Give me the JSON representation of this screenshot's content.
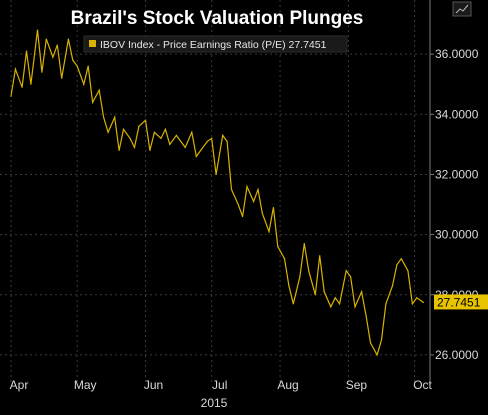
{
  "chart_data": {
    "type": "line",
    "title": "Brazil's Stock Valuation Plunges",
    "legend": "IBOV Index - Price Earnings Ratio (P/E) 27.7451",
    "series": [
      {
        "name": "IBOV Index - Price Earnings Ratio (P/E)",
        "color": "#d9b300",
        "last_value": "27.7451",
        "x": [
          "2015-04-01",
          "2015-04-03",
          "2015-04-06",
          "2015-04-08",
          "2015-04-10",
          "2015-04-13",
          "2015-04-15",
          "2015-04-17",
          "2015-04-20",
          "2015-04-22",
          "2015-04-24",
          "2015-04-27",
          "2015-04-29",
          "2015-05-01",
          "2015-05-04",
          "2015-05-06",
          "2015-05-08",
          "2015-05-11",
          "2015-05-13",
          "2015-05-15",
          "2015-05-18",
          "2015-05-20",
          "2015-05-22",
          "2015-05-25",
          "2015-05-27",
          "2015-05-29",
          "2015-06-01",
          "2015-06-03",
          "2015-06-05",
          "2015-06-08",
          "2015-06-10",
          "2015-06-12",
          "2015-06-15",
          "2015-06-17",
          "2015-06-19",
          "2015-06-22",
          "2015-06-24",
          "2015-06-26",
          "2015-06-29",
          "2015-07-01",
          "2015-07-03",
          "2015-07-06",
          "2015-07-08",
          "2015-07-10",
          "2015-07-13",
          "2015-07-15",
          "2015-07-17",
          "2015-07-20",
          "2015-07-22",
          "2015-07-24",
          "2015-07-27",
          "2015-07-29",
          "2015-07-31",
          "2015-08-03",
          "2015-08-05",
          "2015-08-07",
          "2015-08-10",
          "2015-08-12",
          "2015-08-14",
          "2015-08-17",
          "2015-08-19",
          "2015-08-21",
          "2015-08-24",
          "2015-08-26",
          "2015-08-28",
          "2015-08-31",
          "2015-09-02",
          "2015-09-04",
          "2015-09-07",
          "2015-09-09",
          "2015-09-11",
          "2015-09-14",
          "2015-09-16",
          "2015-09-18",
          "2015-09-21",
          "2015-09-23",
          "2015-09-25",
          "2015-09-28",
          "2015-09-30",
          "2015-10-02",
          "2015-10-05"
        ],
        "values": [
          34.6,
          35.5,
          34.9,
          36.1,
          35.0,
          36.8,
          35.4,
          36.5,
          35.9,
          36.3,
          35.2,
          36.5,
          35.8,
          35.6,
          35.0,
          35.6,
          34.4,
          34.8,
          33.9,
          33.4,
          33.9,
          32.8,
          33.5,
          33.2,
          32.9,
          33.6,
          33.8,
          32.8,
          33.4,
          33.2,
          33.5,
          33.0,
          33.3,
          33.1,
          32.9,
          33.4,
          32.6,
          32.8,
          33.1,
          33.2,
          32.0,
          33.3,
          33.1,
          31.5,
          31.0,
          30.6,
          31.6,
          31.1,
          31.5,
          30.7,
          30.1,
          30.9,
          29.6,
          29.2,
          28.3,
          27.7,
          28.6,
          29.7,
          28.8,
          28.0,
          29.3,
          28.1,
          27.6,
          27.9,
          27.7,
          28.8,
          28.6,
          27.6,
          28.1,
          27.3,
          26.4,
          26.0,
          26.5,
          27.7,
          28.3,
          29.0,
          29.2,
          28.8,
          27.7,
          27.9,
          27.7451
        ]
      }
    ],
    "ylim": [
      25.0,
      37.8
    ],
    "yticks": [
      26,
      28,
      30,
      32,
      34,
      36
    ],
    "ytick_labels": [
      "26.0000",
      "28.0000",
      "30.0000",
      "32.0000",
      "34.0000",
      "36.0000"
    ],
    "x_tick_labels": [
      {
        "label": "Apr",
        "date": "2015-04-01"
      },
      {
        "label": "May",
        "date": "2015-05-01"
      },
      {
        "label": "Jun",
        "date": "2015-06-01"
      },
      {
        "label": "Jul",
        "date": "2015-07-01"
      },
      {
        "label": "Aug",
        "date": "2015-08-01"
      },
      {
        "label": "Sep",
        "date": "2015-09-01"
      },
      {
        "label": "Oct",
        "date": "2015-10-01"
      }
    ],
    "year_label": "2015",
    "xlim": [
      "2015-03-27",
      "2015-10-08"
    ],
    "grid": true,
    "legend_position": "top-left",
    "colors": {
      "background": "#000000",
      "grid": "#3a3a3a",
      "line": "#d9b300",
      "text": "#d9d9d9"
    }
  }
}
